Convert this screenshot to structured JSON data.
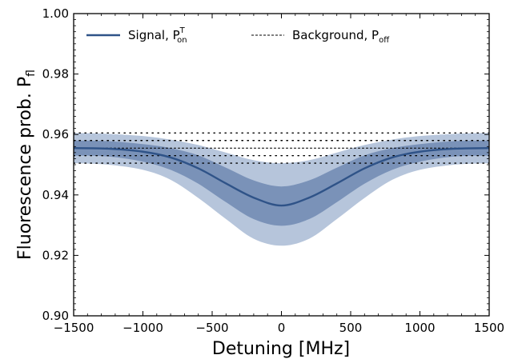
{
  "chart_data": {
    "type": "line",
    "xlabel": "Detuning [MHz]",
    "ylabel": "Fluorescence prob. P",
    "ylabel_subscript": "fl",
    "xlim": [
      -1500,
      1500
    ],
    "ylim": [
      0.9,
      1.0
    ],
    "xticks": [
      -1500,
      -1000,
      -500,
      0,
      500,
      1000,
      1500
    ],
    "xtick_labels": [
      "−1500",
      "−1000",
      "−500",
      "0",
      "500",
      "1000",
      "1500"
    ],
    "yticks": [
      0.9,
      0.92,
      0.94,
      0.96,
      0.98,
      1.0
    ],
    "ytick_labels": [
      "0.90",
      "0.92",
      "0.94",
      "0.96",
      "0.98",
      "1.00"
    ],
    "grid": false,
    "legend_placement": "top",
    "colors": {
      "signal": "#2f5388",
      "signal_band_inner": "#7a92b8",
      "signal_band_outer": "#b6c5db",
      "background": "#000000"
    },
    "series": [
      {
        "name": "Signal, P",
        "name_superscript": "T",
        "name_subscript": "on",
        "style": "solid",
        "x": [
          -1500,
          -1250,
          -1000,
          -800,
          -600,
          -400,
          -200,
          0,
          200,
          400,
          600,
          800,
          1000,
          1250,
          1500
        ],
        "y": [
          0.9555,
          0.9553,
          0.9543,
          0.9524,
          0.9488,
          0.9438,
          0.9391,
          0.9365,
          0.9391,
          0.9438,
          0.9488,
          0.9524,
          0.9543,
          0.9553,
          0.9555
        ],
        "band_inner_low": [
          0.953,
          0.9527,
          0.951,
          0.9483,
          0.9437,
          0.9376,
          0.932,
          0.9298,
          0.932,
          0.9376,
          0.9437,
          0.9483,
          0.951,
          0.9527,
          0.953
        ],
        "band_inner_high": [
          0.958,
          0.9578,
          0.9568,
          0.9555,
          0.9531,
          0.949,
          0.9448,
          0.9428,
          0.9448,
          0.949,
          0.9531,
          0.9555,
          0.9568,
          0.9578,
          0.958
        ],
        "band_outer_low": [
          0.9505,
          0.95,
          0.9483,
          0.945,
          0.939,
          0.932,
          0.9255,
          0.9232,
          0.9255,
          0.932,
          0.939,
          0.945,
          0.9483,
          0.95,
          0.9505
        ],
        "band_outer_high": [
          0.9605,
          0.9602,
          0.9595,
          0.9583,
          0.9565,
          0.954,
          0.9515,
          0.9505,
          0.9515,
          0.954,
          0.9565,
          0.9583,
          0.9595,
          0.9602,
          0.9605
        ]
      },
      {
        "name": "Background, P",
        "name_subscript": "off",
        "style": "dashed",
        "x": [
          -1500,
          1500
        ],
        "y": [
          0.9555,
          0.9555
        ],
        "band_inner_low": [
          0.953,
          0.953
        ],
        "band_inner_high": [
          0.958,
          0.958
        ],
        "band_outer_low": [
          0.9505,
          0.9505
        ],
        "band_outer_high": [
          0.9605,
          0.9605
        ]
      }
    ]
  }
}
